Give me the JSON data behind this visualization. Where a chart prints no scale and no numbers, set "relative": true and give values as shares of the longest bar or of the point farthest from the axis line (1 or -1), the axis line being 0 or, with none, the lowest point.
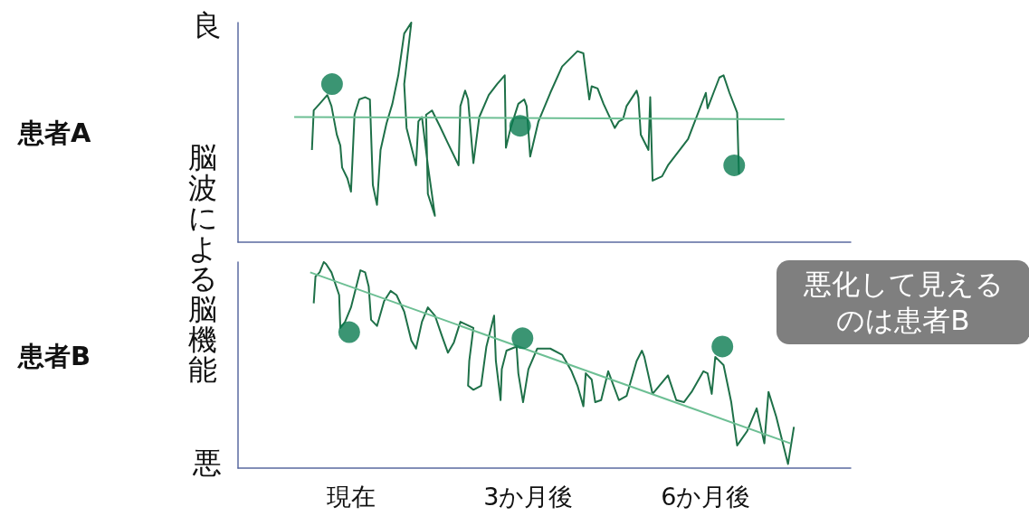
{
  "chart_data": [
    {
      "type": "line",
      "title": "患者A",
      "ylabel": "脳波による脳機能",
      "annotations": [
        "良"
      ],
      "relative": true,
      "tick_labels": false,
      "marker": "none",
      "xlim": [
        -1.91,
        8.45
      ],
      "series": [
        {
          "type": "line",
          "color": "#1e7048",
          "x": [
            -0.66,
            -0.63,
            -0.53,
            -0.4,
            -0.33,
            -0.24,
            -0.18,
            -0.15,
            -0.06,
            0.0,
            0.06,
            0.14,
            0.24,
            0.32,
            0.37,
            0.44,
            0.5,
            0.6,
            0.7,
            0.8,
            0.9,
            1.02,
            0.9,
            0.94,
            1.1,
            1.14,
            1.2,
            1.3,
            1.42,
            1.3,
            1.27,
            1.37,
            1.5,
            1.64,
            1.82,
            1.85,
            1.93,
            1.98,
            2.07,
            2.17,
            2.33,
            2.47,
            2.6,
            2.62,
            2.7,
            2.83,
            2.93,
            2.97,
            3.03,
            3.17,
            3.37,
            3.57,
            3.83,
            3.93,
            4.03,
            4.07,
            4.17,
            4.27,
            4.46,
            4.53,
            4.6,
            4.66,
            4.83,
            4.86,
            4.9,
            5.03,
            5.06,
            5.1,
            5.26,
            5.36,
            5.7,
            6.0,
            6.03,
            6.13,
            6.23,
            6.3,
            6.4,
            6.53,
            6.56
          ],
          "values": [
            0.42,
            0.6,
            0.63,
            0.67,
            0.62,
            0.49,
            0.44,
            0.34,
            0.29,
            0.23,
            0.58,
            0.65,
            0.66,
            0.65,
            0.26,
            0.17,
            0.42,
            0.54,
            0.63,
            0.76,
            0.95,
            1,
            0.72,
            0.52,
            0.35,
            0.55,
            0.57,
            0.35,
            0.12,
            0.22,
            0.58,
            0.6,
            0.53,
            0.45,
            0.35,
            0.62,
            0.69,
            0.65,
            0.36,
            0.57,
            0.67,
            0.72,
            0.76,
            0.43,
            0.52,
            0.63,
            0.65,
            0.62,
            0.39,
            0.55,
            0.68,
            0.8,
            0.87,
            0.86,
            0.65,
            0.71,
            0.7,
            0.63,
            0.52,
            0.55,
            0.56,
            0.62,
            0.69,
            0.66,
            0.49,
            0.42,
            0.66,
            0.28,
            0.3,
            0.35,
            0.47,
            0.68,
            0.61,
            0.68,
            0.75,
            0.76,
            0.68,
            0.59,
            0.31
          ]
        },
        {
          "type": "line",
          "color": "#6dbf94",
          "x": [
            -0.96,
            7.33
          ],
          "values": [
            0.57,
            0.56
          ]
        },
        {
          "type": "scatter",
          "marker": "circle",
          "color": "#0a7a50",
          "x": [
            -0.32,
            2.86,
            6.48
          ],
          "values": [
            0.72,
            0.53,
            0.35
          ]
        }
      ]
    },
    {
      "type": "line",
      "title": "患者B",
      "annotations": [
        "悪",
        "悪化して見えるのは患者B"
      ],
      "relative": true,
      "tick_labels": "x",
      "marker": "none",
      "xlim": [
        -1.91,
        8.45
      ],
      "xticks": [
        {
          "value": 0,
          "label": "現在"
        },
        {
          "value": 3,
          "label": "3か月後"
        },
        {
          "value": 6,
          "label": "6か月後"
        }
      ],
      "series": [
        {
          "type": "line",
          "color": "#1e7048",
          "x": [
            -0.63,
            -0.6,
            -0.53,
            -0.46,
            -0.42,
            -0.33,
            -0.2,
            -0.18,
            -0.1,
            0.0,
            0.16,
            0.24,
            0.3,
            0.34,
            0.44,
            0.56,
            0.67,
            0.77,
            0.9,
            1.02,
            1.1,
            1.2,
            1.3,
            1.42,
            1.54,
            1.64,
            1.74,
            1.85,
            2.07,
            2.0,
            1.98,
            2.07,
            2.2,
            2.29,
            2.42,
            2.45,
            2.53,
            2.55,
            2.63,
            2.8,
            2.83,
            2.91,
            3.0,
            3.15,
            3.37,
            3.57,
            3.73,
            3.83,
            3.93,
            3.97,
            4.07,
            4.13,
            4.23,
            4.35,
            4.53,
            4.66,
            4.83,
            4.92,
            4.96,
            5.1,
            5.36,
            5.5,
            5.63,
            5.76,
            5.96,
            6.03,
            6.1,
            6.16,
            6.3,
            6.43,
            6.53,
            6.7,
            6.86,
            6.99,
            7.06,
            7.19,
            7.39,
            7.49
          ],
          "values": [
            0.8,
            0.93,
            0.95,
            1,
            0.99,
            0.95,
            0.84,
            0.68,
            0.71,
            0.78,
            0.96,
            0.95,
            0.88,
            0.72,
            0.69,
            0.81,
            0.86,
            0.84,
            0.76,
            0.62,
            0.58,
            0.71,
            0.78,
            0.74,
            0.64,
            0.56,
            0.61,
            0.71,
            0.68,
            0.52,
            0.4,
            0.38,
            0.4,
            0.59,
            0.74,
            0.52,
            0.33,
            0.48,
            0.57,
            0.59,
            0.46,
            0.32,
            0.48,
            0.58,
            0.58,
            0.55,
            0.47,
            0.4,
            0.3,
            0.46,
            0.43,
            0.32,
            0.33,
            0.47,
            0.33,
            0.35,
            0.52,
            0.57,
            0.54,
            0.36,
            0.45,
            0.33,
            0.32,
            0.37,
            0.47,
            0.46,
            0.36,
            0.54,
            0.5,
            0.32,
            0.11,
            0.18,
            0.29,
            0.12,
            0.37,
            0.25,
            0.02,
            0.2
          ]
        },
        {
          "type": "line",
          "color": "#6dbf94",
          "x": [
            -0.69,
            7.43
          ],
          "values": [
            0.95,
            0.12
          ]
        },
        {
          "type": "scatter",
          "marker": "circle",
          "color": "#0a7a50",
          "x": [
            -0.03,
            2.9,
            6.28
          ],
          "values": [
            0.66,
            0.63,
            0.59
          ]
        }
      ]
    }
  ]
}
